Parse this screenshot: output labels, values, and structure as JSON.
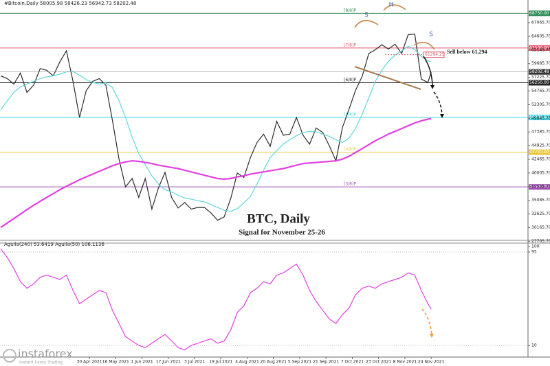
{
  "chart_data": [
    {
      "type": "line",
      "header": "#Bitcoin,Daily  58005.98 58426.23 56942.73 58202.48",
      "title": "BTC, Daily",
      "subtitle": "Signal for November 25-26",
      "annotations": [
        "S",
        "H",
        "S",
        "Sell below 61,294"
      ],
      "x": [
        "2021-03-07",
        "2021-03-11",
        "2021-03-15",
        "2021-03-19",
        "2021-03-23",
        "2021-03-27",
        "2021-03-31",
        "2021-04-04",
        "2021-04-08",
        "2021-04-12",
        "2021-04-16",
        "2021-04-20",
        "2021-04-24",
        "2021-04-28",
        "2021-05-02",
        "2021-05-06",
        "2021-05-10",
        "2021-05-14",
        "2021-05-18",
        "2021-05-22",
        "2021-05-26",
        "2021-05-30",
        "2021-06-03",
        "2021-06-07",
        "2021-06-11",
        "2021-06-15",
        "2021-06-19",
        "2021-06-23",
        "2021-06-27",
        "2021-07-01",
        "2021-07-05",
        "2021-07-09",
        "2021-07-13",
        "2021-07-17",
        "2021-07-21",
        "2021-07-25",
        "2021-07-29",
        "2021-08-02",
        "2021-08-06",
        "2021-08-10",
        "2021-08-14",
        "2021-08-18",
        "2021-08-22",
        "2021-08-26",
        "2021-08-30",
        "2021-09-03",
        "2021-09-07",
        "2021-09-11",
        "2021-09-15",
        "2021-09-19",
        "2021-09-23",
        "2021-09-27",
        "2021-10-01",
        "2021-10-05",
        "2021-10-09",
        "2021-10-13",
        "2021-10-17",
        "2021-10-21",
        "2021-10-25",
        "2021-10-29",
        "2021-11-02",
        "2021-11-06",
        "2021-11-10",
        "2021-11-14",
        "2021-11-18",
        "2021-11-22",
        "2021-11-24"
      ],
      "series": [
        {
          "color": "#2b2b2b",
          "values": [
            57500,
            57000,
            56000,
            58000,
            54500,
            55800,
            58800,
            58500,
            57500,
            60000,
            62000,
            56500,
            50000,
            54800,
            56500,
            57000,
            55800,
            49500,
            42500,
            37500,
            39000,
            35600,
            39000,
            33500,
            37300,
            40100,
            35600,
            33700,
            34700,
            33500,
            33800,
            33800,
            32800,
            31500,
            32100,
            35400,
            40000,
            39200,
            42800,
            45500,
            47000,
            44800,
            49300,
            46800,
            47000,
            50000,
            46800,
            45200,
            48100,
            47300,
            44900,
            42200,
            48200,
            51500,
            54900,
            57400,
            61500,
            62200,
            63100,
            62300,
            63200,
            61500,
            64900,
            65000,
            56900,
            56300,
            58200
          ]
        },
        {
          "color": "#5fd6dc",
          "values": [
            51400,
            53000,
            54500,
            55500,
            56000,
            56500,
            57000,
            57300,
            57500,
            57800,
            58200,
            58300,
            57600,
            56800,
            56300,
            56000,
            56200,
            55400,
            53000,
            50000,
            46500,
            43500,
            41500,
            39500,
            38000,
            37000,
            36600,
            36000,
            35500,
            35300,
            35000,
            34800,
            34300,
            33800,
            33300,
            33100,
            33600,
            34600,
            35800,
            38000,
            40500,
            42800,
            44000,
            45200,
            46000,
            46700,
            47300,
            47500,
            47400,
            47000,
            46600,
            46000,
            45500,
            46300,
            48000,
            50600,
            53500,
            56500,
            58500,
            60100,
            61200,
            62000,
            62800,
            62200,
            61000,
            60200,
            60000
          ]
        },
        {
          "color": "#e040e0",
          "values": [
            30200,
            31000,
            31800,
            32600,
            33400,
            34200,
            34900,
            35600,
            36300,
            37000,
            37600,
            38200,
            38800,
            39300,
            39800,
            40300,
            40800,
            41300,
            41700,
            42000,
            42200,
            42100,
            41900,
            41700,
            41400,
            41200,
            41000,
            40800,
            40500,
            40200,
            39900,
            39600,
            39300,
            39000,
            38900,
            39000,
            39300,
            39500,
            39800,
            40000,
            40200,
            40400,
            40600,
            40800,
            41100,
            41400,
            41700,
            41800,
            41900,
            42000,
            42100,
            42200,
            42500,
            43000,
            43700,
            44400,
            45100,
            45800,
            46400,
            47000,
            47500,
            48000,
            48500,
            49000,
            49400,
            49700,
            49800
          ]
        }
      ],
      "ylim": [
        27633,
        71144
      ],
      "yticks": [
        {
          "value": 67065.7,
          "label": "67065.70"
        },
        {
          "value": 64605.7,
          "label": "64605.70"
        },
        {
          "value": 62145.7,
          "label": "62145.70"
        },
        {
          "value": 59685.7,
          "label": "59685.70"
        },
        {
          "value": 57225.7,
          "label": "57225.70"
        },
        {
          "value": 54765.7,
          "label": "54765.70"
        },
        {
          "value": 52305.7,
          "label": "52305.70"
        },
        {
          "value": 49845.7,
          "label": "49845.70"
        },
        {
          "value": 47385.7,
          "label": "47385.70"
        },
        {
          "value": 44925.7,
          "label": "44925.70"
        },
        {
          "value": 42465.7,
          "label": "42465.70"
        },
        {
          "value": 40005.7,
          "label": "40005.70"
        },
        {
          "value": 37545.7,
          "label": "37545.70"
        },
        {
          "value": 35085.7,
          "label": "35085.70"
        },
        {
          "value": 32625.7,
          "label": "32625.70"
        },
        {
          "value": 30165.7,
          "label": "30165.70"
        },
        {
          "value": 27705.7,
          "label": "27705.70"
        }
      ],
      "levels": [
        {
          "value": 68750,
          "label": "68750.00",
          "name": "[8/8]P",
          "color": "#2e8b57"
        },
        {
          "value": 62500,
          "label": "62500.00",
          "name": "[7/8]P",
          "color": "#e0556a"
        },
        {
          "value": 56250,
          "label": "56250.00",
          "name": "[6/8]P",
          "color": "#222222"
        },
        {
          "value": 50000,
          "label": "50000.00",
          "name": "[5/8]P",
          "color": "#3fd0e0"
        },
        {
          "value": 43750,
          "label": "43750.00",
          "name": "[4/8]P",
          "color": "#e8c840"
        },
        {
          "value": 37500,
          "label": "37500.00",
          "name": "[3/8]P",
          "color": "#a050b0"
        }
      ],
      "sell_level": 61294.25,
      "last_price": 58202.48
    },
    {
      "type": "line",
      "header": "Aguila(240) 53.6419 Aguila(50) 106.1136",
      "series": [
        {
          "color": "#e040e0",
          "values": [
            98,
            90,
            80,
            68,
            62,
            66,
            72,
            74,
            72,
            70,
            74,
            60,
            48,
            52,
            56,
            60,
            58,
            42,
            30,
            18,
            14,
            10,
            8,
            12,
            16,
            20,
            14,
            8,
            6,
            10,
            12,
            14,
            16,
            12,
            14,
            24,
            40,
            46,
            58,
            62,
            68,
            66,
            74,
            76,
            80,
            84,
            74,
            60,
            50,
            42,
            34,
            30,
            38,
            44,
            56,
            62,
            64,
            62,
            66,
            68,
            70,
            72,
            76,
            74,
            60,
            48,
            43
          ]
        }
      ],
      "ylim": [
        0,
        100
      ],
      "yticks": [
        100,
        95,
        10
      ],
      "xticks": [
        {
          "value": "2021-04-30",
          "label": "30 Apr 2021"
        },
        {
          "value": "2021-05-16",
          "label": "16 May 2021"
        },
        {
          "value": "2021-06-01",
          "label": "1 Jun 2021"
        },
        {
          "value": "2021-06-17",
          "label": "17 Jun 2021"
        },
        {
          "value": "2021-07-03",
          "label": "3 Jul 2021"
        },
        {
          "value": "2021-07-19",
          "label": "19 Jul 2021"
        },
        {
          "value": "2021-08-04",
          "label": "4 Aug 2021"
        },
        {
          "value": "2021-08-20",
          "label": "20 Aug 2021"
        },
        {
          "value": "2021-09-05",
          "label": "5 Sep 2021"
        },
        {
          "value": "2021-09-21",
          "label": "21 Sep 2021"
        },
        {
          "value": "2021-10-07",
          "label": "7 Oct 2021"
        },
        {
          "value": "2021-10-23",
          "label": "23 Oct 2021"
        },
        {
          "value": "2021-11-08",
          "label": "8 Nov 2021"
        },
        {
          "value": "2021-11-24",
          "label": "24 Nov 2021"
        }
      ]
    }
  ]
}
